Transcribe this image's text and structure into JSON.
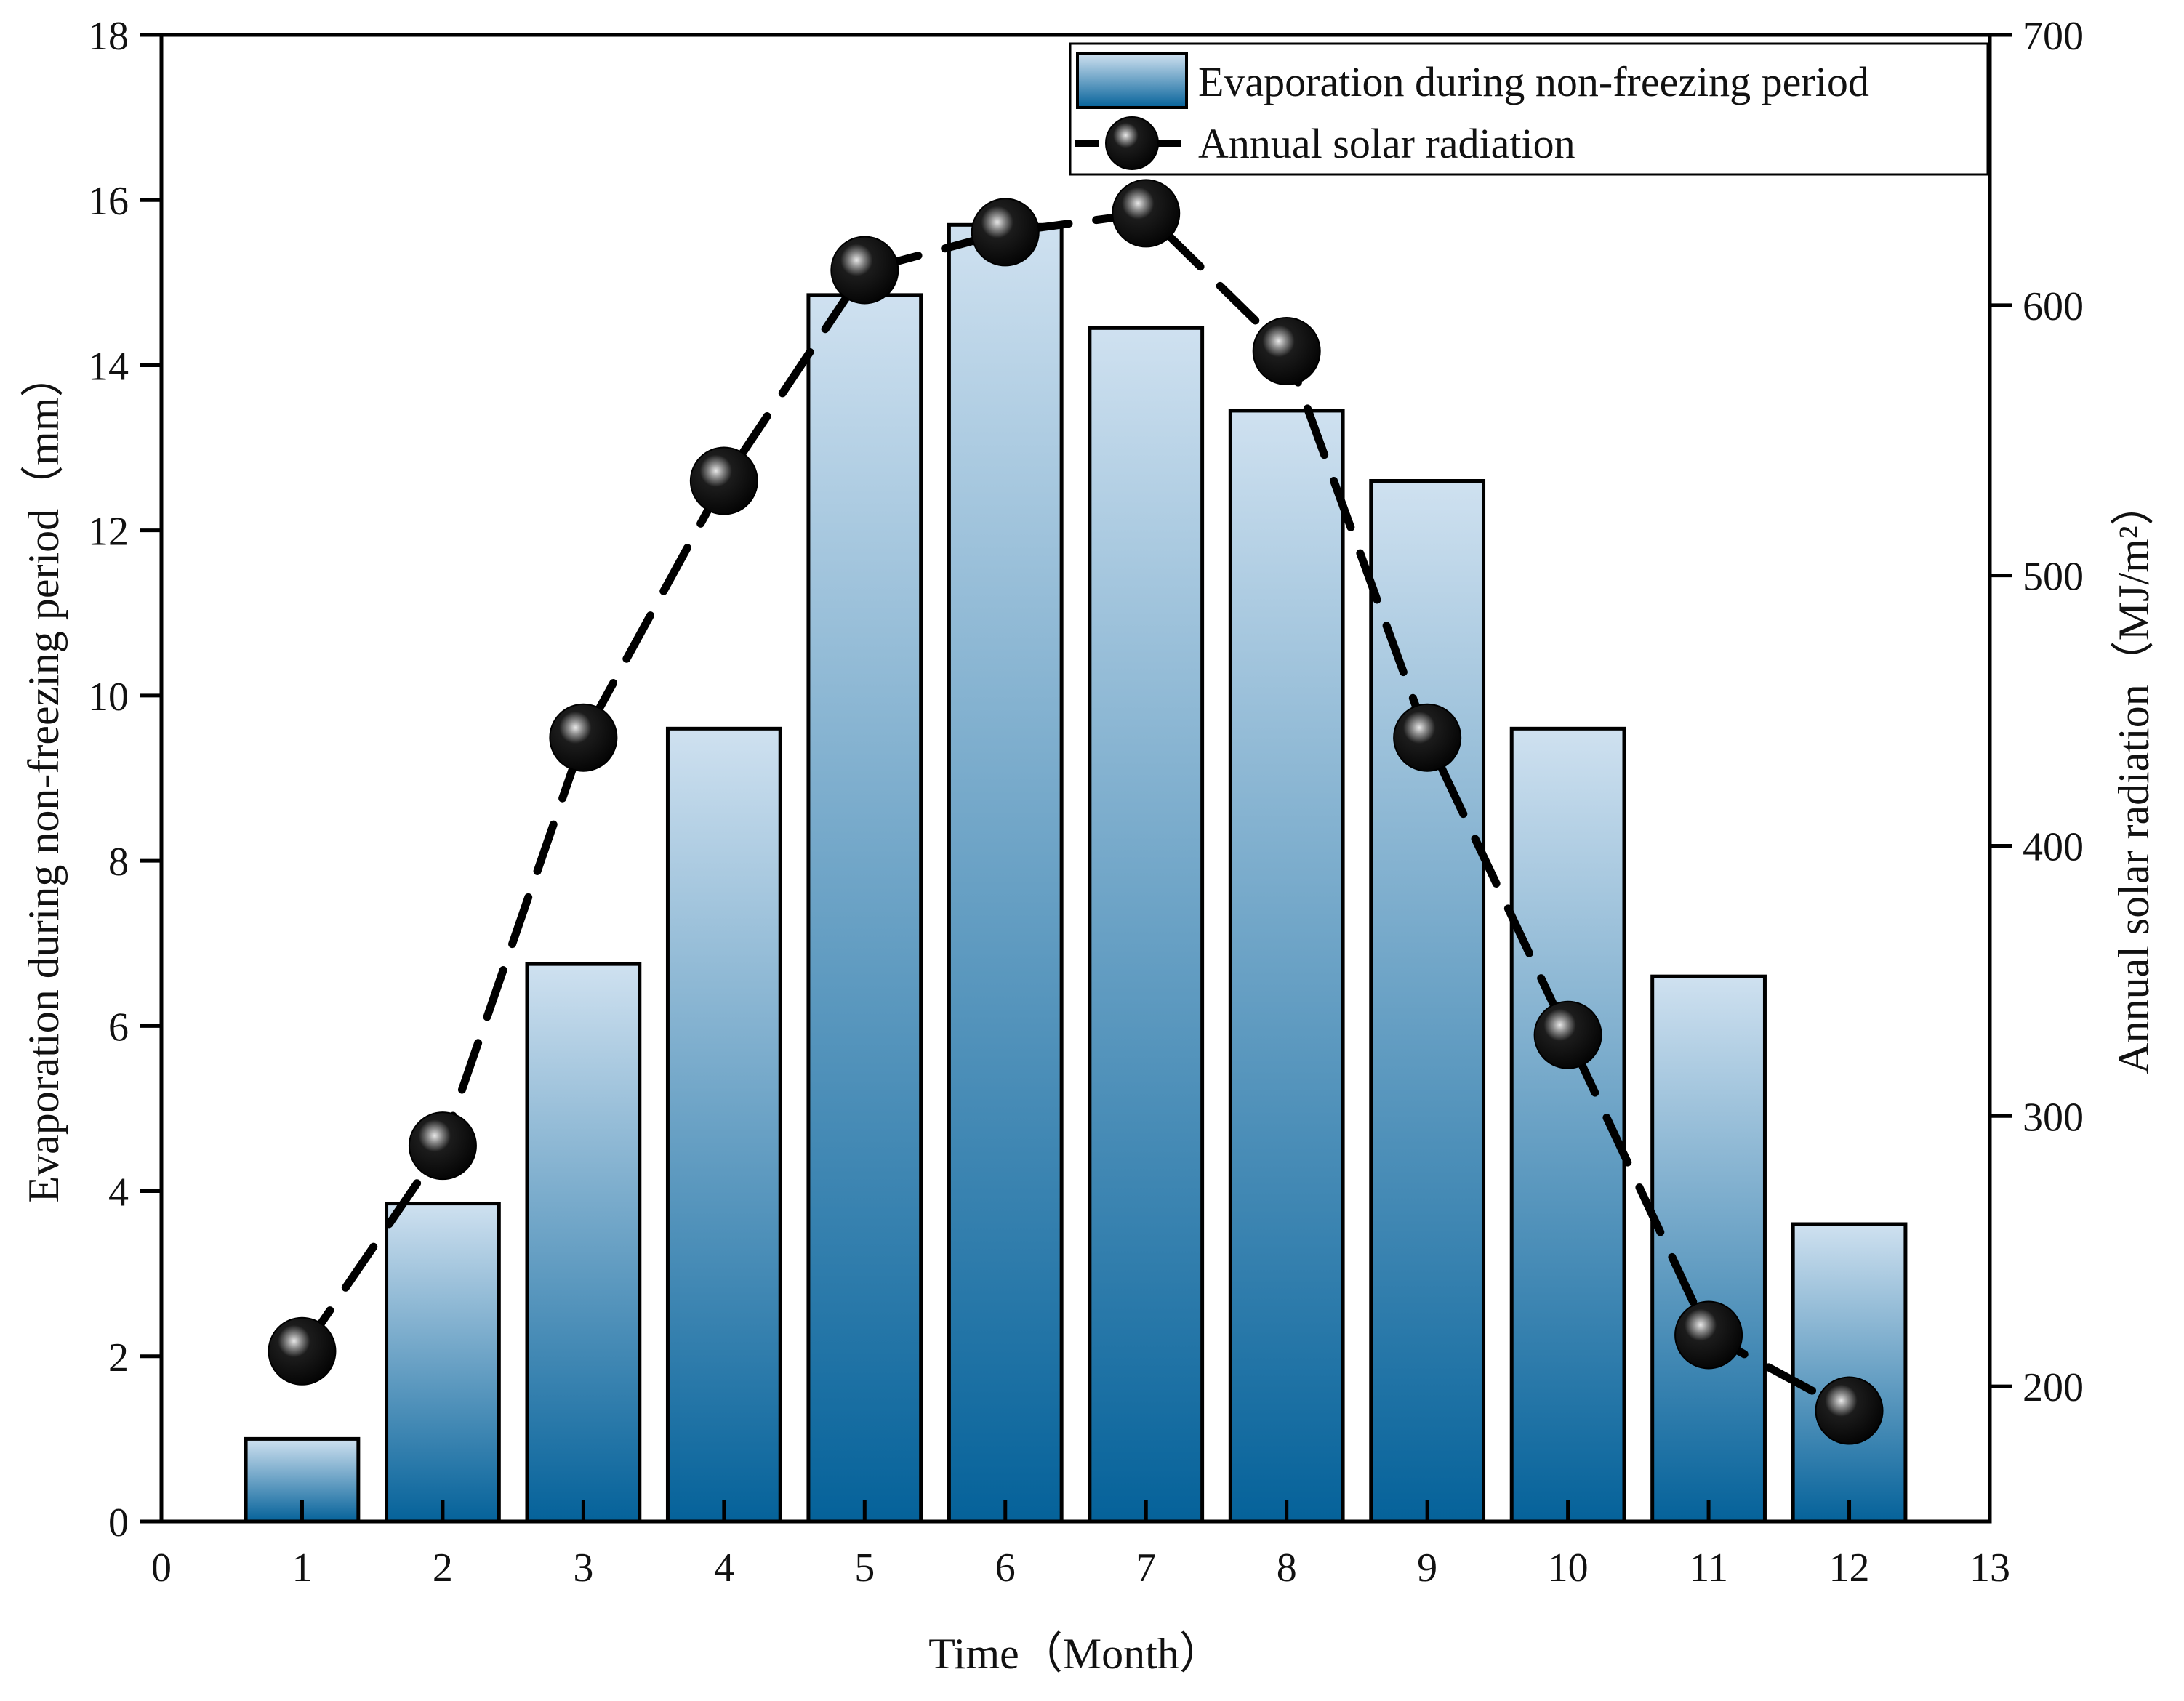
{
  "chart_data": {
    "type": "bar+line",
    "x": [
      1,
      2,
      3,
      4,
      5,
      6,
      7,
      8,
      9,
      10,
      11,
      12
    ],
    "x_ticks": [
      0,
      1,
      2,
      3,
      4,
      5,
      6,
      7,
      8,
      9,
      10,
      11,
      12,
      13
    ],
    "xlim": [
      0,
      13
    ],
    "xlabel": "Time（Month）",
    "series": [
      {
        "name": "Evaporation during non-freezing period",
        "type": "bar",
        "axis": "left",
        "values": [
          1.0,
          3.85,
          6.75,
          9.6,
          14.85,
          15.7,
          14.45,
          13.45,
          12.6,
          9.6,
          6.6,
          3.6
        ]
      },
      {
        "name": "Annual solar radiation",
        "type": "line",
        "axis": "right",
        "values": [
          213,
          289,
          440,
          535,
          613,
          627,
          634,
          583,
          440,
          330,
          219,
          191
        ]
      }
    ],
    "y_left": {
      "label": "Evaporation during non-freezing period（mm）",
      "ylim": [
        0,
        18
      ],
      "ticks": [
        0,
        2,
        4,
        6,
        8,
        10,
        12,
        14,
        16,
        18
      ]
    },
    "y_right": {
      "label": "Annual solar radiation（MJ/m²）",
      "ylim": [
        150,
        700
      ],
      "ticks": [
        200,
        300,
        400,
        500,
        600,
        700
      ]
    },
    "legend": "top-right",
    "colors": {
      "bar_top": "#cfe1f0",
      "bar_bottom": "#05629a",
      "line": "#000000",
      "marker": "#050505"
    }
  }
}
